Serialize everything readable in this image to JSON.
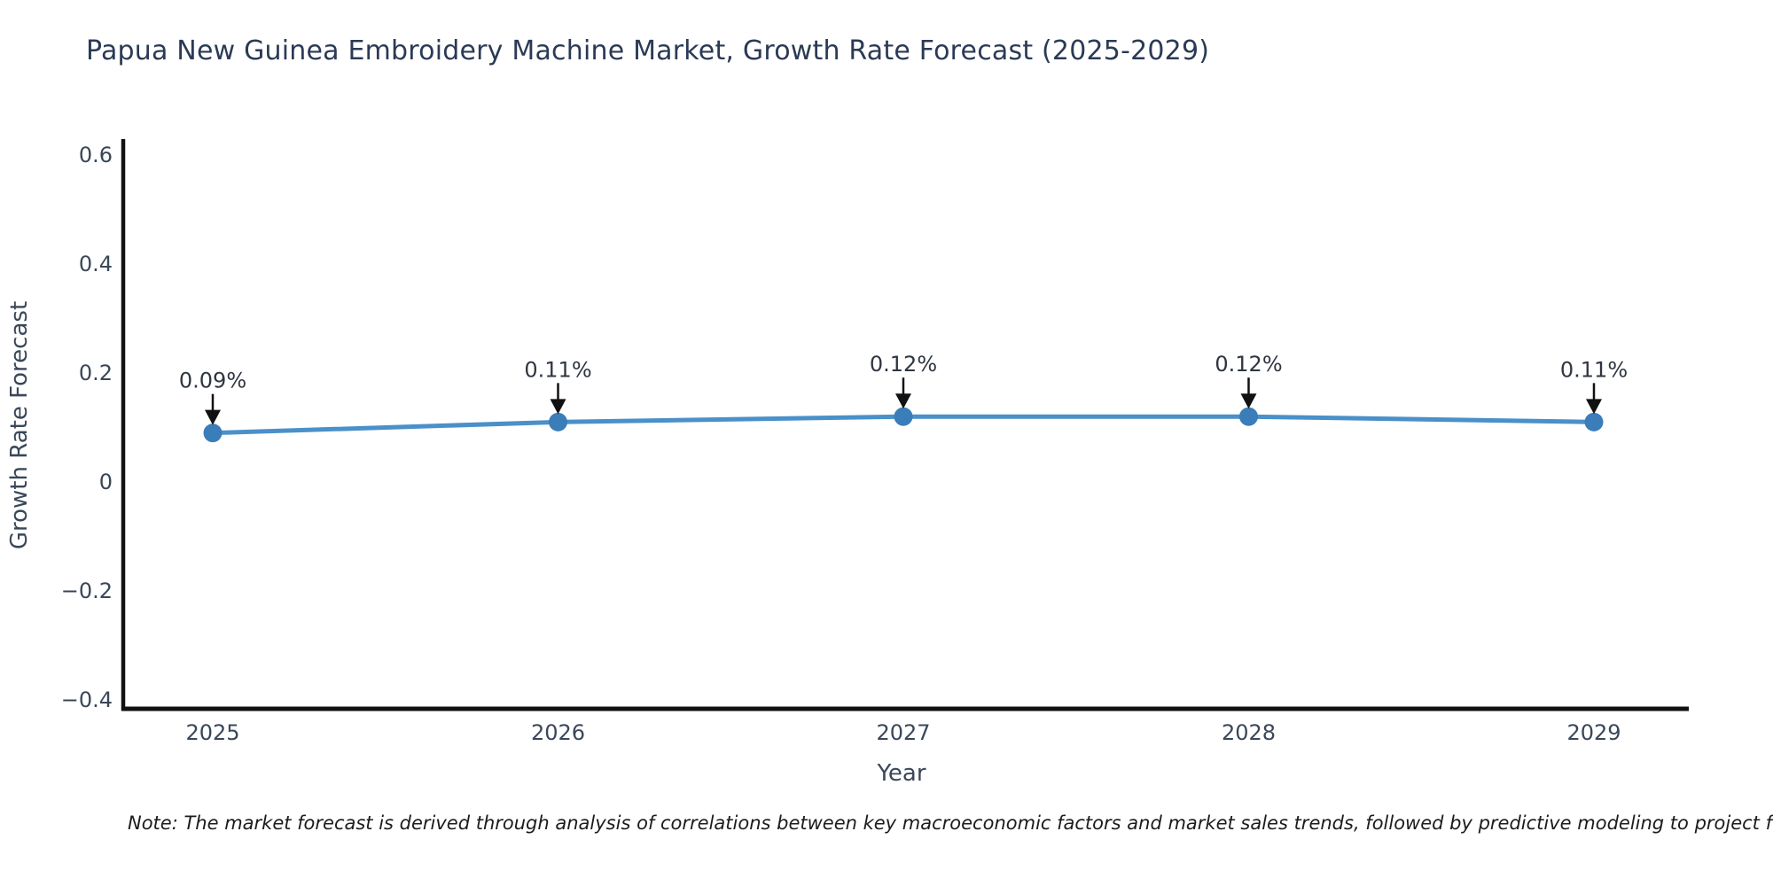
{
  "title": "Papua New Guinea Embroidery Machine Market, Growth Rate Forecast (2025-2029)",
  "note": "Note: The market forecast is derived through analysis of correlations between key macroeconomic factors and market sales trends, followed by predictive modeling to project future sales performance.",
  "chart_data": {
    "type": "line",
    "title": "Papua New Guinea Embroidery Machine Market, Growth Rate Forecast (2025-2029)",
    "xlabel": "Year",
    "ylabel": "Growth Rate Forecast",
    "categories": [
      2025,
      2026,
      2027,
      2028,
      2029
    ],
    "values": [
      0.09,
      0.11,
      0.12,
      0.12,
      0.11
    ],
    "point_labels": [
      "0.09%",
      "0.11%",
      "0.12%",
      "0.12%",
      "0.11%"
    ],
    "yticks": [
      0.6,
      0.4,
      0.2,
      0,
      -0.2,
      -0.4
    ],
    "ylim": [
      -0.42,
      0.63
    ],
    "grid": false,
    "legend_position": "none",
    "annotation_style": "label-above-with-black-arrow",
    "line_color": "#4a90c9",
    "marker_color": "#3b7db8",
    "axis_color": "#111111",
    "tick_text_color": "#3a4759",
    "annotation_text_color": "#2f3640",
    "title_color": "#2b3a55"
  }
}
